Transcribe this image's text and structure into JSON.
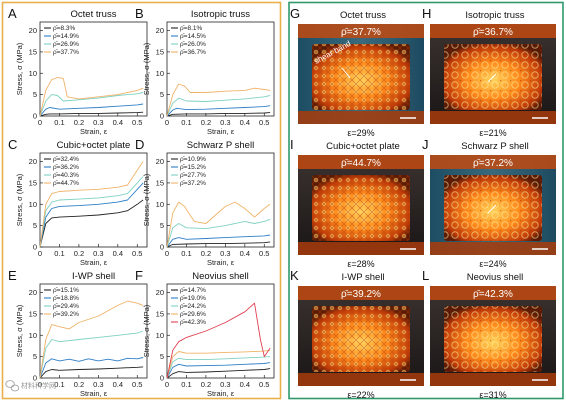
{
  "colors": {
    "left_frame": "#e8b048",
    "right_frame": "#2e9a6c",
    "series": [
      "#222222",
      "#2f7fc7",
      "#7fd1c2",
      "#f0b36a"
    ],
    "neovius_extra": "#e04050"
  },
  "chart_data": [
    {
      "type": "line",
      "panel_label": "A",
      "title": "Octet truss",
      "xlabel": "Strain, ε",
      "ylabel": "Stress, σ (MPa)",
      "xlim": [
        0,
        0.55
      ],
      "ylim": [
        0,
        22
      ],
      "xticks": [
        "0",
        "0.1",
        "0.2",
        "0.3",
        "0.4",
        "0.5"
      ],
      "yticks": [
        "0",
        "5",
        "10",
        "15",
        "20"
      ],
      "series": [
        {
          "name": "ρ̄=8.3%",
          "x": [
            0,
            0.03,
            0.05,
            0.1,
            0.2,
            0.3,
            0.4,
            0.5,
            0.53
          ],
          "y": [
            0,
            0.4,
            0.5,
            0.5,
            0.6,
            0.6,
            0.7,
            0.8,
            0.9
          ]
        },
        {
          "name": "ρ̄=14.9%",
          "x": [
            0,
            0.03,
            0.05,
            0.1,
            0.2,
            0.3,
            0.4,
            0.5,
            0.53
          ],
          "y": [
            0,
            1.6,
            2.0,
            1.6,
            1.8,
            2.0,
            2.3,
            2.6,
            2.8
          ]
        },
        {
          "name": "ρ̄=26.9%",
          "x": [
            0,
            0.03,
            0.06,
            0.09,
            0.12,
            0.2,
            0.3,
            0.4,
            0.5,
            0.53
          ],
          "y": [
            0,
            3.5,
            5.0,
            4.8,
            3.5,
            3.8,
            4.2,
            4.8,
            5.2,
            5.5
          ]
        },
        {
          "name": "ρ̄=37.7%",
          "x": [
            0,
            0.03,
            0.06,
            0.09,
            0.12,
            0.14,
            0.2,
            0.3,
            0.4,
            0.5,
            0.53
          ],
          "y": [
            0,
            6.0,
            8.5,
            9.0,
            8.8,
            4.5,
            4.0,
            4.5,
            5.0,
            6.0,
            6.5
          ]
        }
      ]
    },
    {
      "type": "line",
      "panel_label": "B",
      "title": "Isotropic truss",
      "xlabel": "Strain, ε",
      "ylabel": "Stress, σ (MPa)",
      "xlim": [
        0,
        0.55
      ],
      "ylim": [
        0,
        22
      ],
      "xticks": [
        "0",
        "0.1",
        "0.2",
        "0.3",
        "0.4",
        "0.5"
      ],
      "yticks": [
        "0",
        "5",
        "10",
        "15",
        "20"
      ],
      "series": [
        {
          "name": "ρ̄=8.1%",
          "x": [
            0,
            0.03,
            0.1,
            0.2,
            0.3,
            0.4,
            0.5,
            0.53
          ],
          "y": [
            0,
            0.4,
            0.5,
            0.5,
            0.6,
            0.6,
            0.7,
            0.8
          ]
        },
        {
          "name": "ρ̄=14.5%",
          "x": [
            0,
            0.03,
            0.05,
            0.1,
            0.2,
            0.3,
            0.4,
            0.5,
            0.53
          ],
          "y": [
            0,
            1.4,
            1.8,
            1.5,
            1.6,
            1.8,
            2.0,
            2.2,
            2.4
          ]
        },
        {
          "name": "ρ̄=26.0%",
          "x": [
            0,
            0.03,
            0.06,
            0.1,
            0.2,
            0.3,
            0.4,
            0.5,
            0.53
          ],
          "y": [
            0,
            3.0,
            4.2,
            3.5,
            3.4,
            3.7,
            4.0,
            4.5,
            4.8
          ]
        },
        {
          "name": "ρ̄=36.7%",
          "x": [
            0,
            0.03,
            0.06,
            0.09,
            0.12,
            0.2,
            0.3,
            0.4,
            0.45,
            0.5,
            0.53
          ],
          "y": [
            0,
            5.0,
            7.5,
            7.0,
            5.5,
            5.5,
            5.8,
            6.0,
            6.5,
            6.2,
            6.0
          ]
        }
      ]
    },
    {
      "type": "line",
      "panel_label": "C",
      "title": "Cubic+octet plate",
      "xlabel": "Strain, ε",
      "ylabel": "Stress, σ (MPa)",
      "xlim": [
        0,
        0.55
      ],
      "ylim": [
        0,
        22
      ],
      "xticks": [
        "0",
        "0.1",
        "0.2",
        "0.3",
        "0.4",
        "0.5"
      ],
      "yticks": [
        "0",
        "5",
        "10",
        "15",
        "20"
      ],
      "series": [
        {
          "name": "ρ̄=32.4%",
          "x": [
            0,
            0.03,
            0.06,
            0.1,
            0.2,
            0.3,
            0.4,
            0.45,
            0.5,
            0.53
          ],
          "y": [
            0,
            5.5,
            6.8,
            7.0,
            7.2,
            7.5,
            8.0,
            8.5,
            10.0,
            11.0
          ]
        },
        {
          "name": "ρ̄=36.2%",
          "x": [
            0,
            0.03,
            0.06,
            0.1,
            0.2,
            0.3,
            0.4,
            0.45,
            0.5,
            0.53
          ],
          "y": [
            0,
            7.0,
            9.0,
            9.5,
            9.7,
            10.0,
            10.5,
            11.0,
            13.5,
            15.0
          ]
        },
        {
          "name": "ρ̄=40.3%",
          "x": [
            0,
            0.03,
            0.06,
            0.1,
            0.2,
            0.3,
            0.4,
            0.45,
            0.5,
            0.53
          ],
          "y": [
            0,
            8.5,
            10.5,
            11.0,
            11.2,
            11.5,
            12.0,
            12.5,
            15.0,
            16.5
          ]
        },
        {
          "name": "ρ̄=44.7%",
          "x": [
            0,
            0.03,
            0.06,
            0.1,
            0.2,
            0.3,
            0.4,
            0.45,
            0.5,
            0.53
          ],
          "y": [
            0,
            10.0,
            12.5,
            13.0,
            13.3,
            13.5,
            14.0,
            14.5,
            18.0,
            20.0
          ]
        }
      ]
    },
    {
      "type": "line",
      "panel_label": "D",
      "title": "Schwarz P shell",
      "xlabel": "Strain, ε",
      "ylabel": "Stress, σ (MPa)",
      "xlim": [
        0,
        0.55
      ],
      "ylim": [
        0,
        22
      ],
      "xticks": [
        "0",
        "0.1",
        "0.2",
        "0.3",
        "0.4",
        "0.5"
      ],
      "yticks": [
        "0",
        "5",
        "10",
        "15",
        "20"
      ],
      "series": [
        {
          "name": "ρ̄=10.9%",
          "x": [
            0,
            0.03,
            0.1,
            0.2,
            0.3,
            0.4,
            0.5,
            0.53
          ],
          "y": [
            0,
            0.6,
            0.7,
            0.8,
            0.8,
            0.9,
            1.0,
            1.2
          ]
        },
        {
          "name": "ρ̄=15.2%",
          "x": [
            0,
            0.03,
            0.06,
            0.1,
            0.2,
            0.3,
            0.4,
            0.5,
            0.53
          ],
          "y": [
            0,
            1.8,
            2.2,
            1.8,
            2.0,
            2.2,
            2.4,
            2.6,
            2.8
          ]
        },
        {
          "name": "ρ̄=27.7%",
          "x": [
            0,
            0.03,
            0.06,
            0.1,
            0.2,
            0.3,
            0.4,
            0.45,
            0.5,
            0.53
          ],
          "y": [
            0,
            4.5,
            5.5,
            4.5,
            4.3,
            5.0,
            6.0,
            5.5,
            6.0,
            6.5
          ]
        },
        {
          "name": "ρ̄=37.2%",
          "x": [
            0,
            0.03,
            0.06,
            0.09,
            0.14,
            0.2,
            0.25,
            0.3,
            0.35,
            0.4,
            0.45,
            0.5,
            0.53
          ],
          "y": [
            0,
            8.0,
            10.5,
            9.5,
            6.0,
            5.5,
            7.5,
            9.5,
            10.5,
            9.0,
            7.0,
            9.0,
            10.0
          ]
        }
      ]
    },
    {
      "type": "line",
      "panel_label": "E",
      "title": "I-WP shell",
      "xlabel": "Strain, ε",
      "ylabel": "Stress, σ (MPa)",
      "xlim": [
        0,
        0.55
      ],
      "ylim": [
        0,
        22
      ],
      "xticks": [
        "0",
        "0.1",
        "0.2",
        "0.3",
        "0.4",
        "0.5"
      ],
      "yticks": [
        "0",
        "5",
        "10",
        "15",
        "20"
      ],
      "series": [
        {
          "name": "ρ̄=15.1%",
          "x": [
            0,
            0.03,
            0.06,
            0.1,
            0.2,
            0.3,
            0.4,
            0.5,
            0.53
          ],
          "y": [
            0,
            1.5,
            2.0,
            1.8,
            2.0,
            2.1,
            2.3,
            2.5,
            2.6
          ]
        },
        {
          "name": "ρ̄=18.8%",
          "x": [
            0,
            0.03,
            0.06,
            0.1,
            0.15,
            0.2,
            0.25,
            0.3,
            0.35,
            0.4,
            0.45,
            0.5,
            0.53
          ],
          "y": [
            0,
            3.5,
            4.5,
            4.0,
            4.4,
            3.9,
            4.5,
            4.0,
            4.4,
            4.0,
            4.6,
            4.5,
            4.8
          ]
        },
        {
          "name": "ρ̄=29.4%",
          "x": [
            0,
            0.03,
            0.06,
            0.1,
            0.2,
            0.3,
            0.4,
            0.5,
            0.53
          ],
          "y": [
            0,
            7.0,
            9.0,
            8.5,
            9.0,
            9.5,
            10.0,
            10.5,
            11.0
          ]
        },
        {
          "name": "ρ̄=39.2%",
          "x": [
            0,
            0.03,
            0.06,
            0.1,
            0.15,
            0.2,
            0.3,
            0.4,
            0.45,
            0.5,
            0.53
          ],
          "y": [
            0,
            9.0,
            12.5,
            12.0,
            11.5,
            13.0,
            14.5,
            17.0,
            18.0,
            17.5,
            17.0
          ]
        }
      ]
    },
    {
      "type": "line",
      "panel_label": "F",
      "title": "Neovius shell",
      "xlabel": "Strain, ε",
      "ylabel": "Stress, σ (MPa)",
      "xlim": [
        0,
        0.55
      ],
      "ylim": [
        0,
        22
      ],
      "xticks": [
        "0",
        "0.1",
        "0.2",
        "0.3",
        "0.4",
        "0.5"
      ],
      "yticks": [
        "0",
        "5",
        "10",
        "15",
        "20"
      ],
      "series": [
        {
          "name": "ρ̄=14.7%",
          "x": [
            0,
            0.03,
            0.06,
            0.1,
            0.2,
            0.3,
            0.4,
            0.5,
            0.53
          ],
          "y": [
            0,
            1.0,
            1.5,
            1.3,
            1.4,
            1.6,
            1.8,
            2.0,
            2.2
          ]
        },
        {
          "name": "ρ̄=19.0%",
          "x": [
            0,
            0.03,
            0.06,
            0.1,
            0.2,
            0.3,
            0.4,
            0.5,
            0.53
          ],
          "y": [
            0,
            2.5,
            3.2,
            2.8,
            2.9,
            3.0,
            3.2,
            3.4,
            3.6
          ]
        },
        {
          "name": "ρ̄=24.2%",
          "x": [
            0,
            0.03,
            0.06,
            0.1,
            0.2,
            0.3,
            0.4,
            0.5,
            0.53
          ],
          "y": [
            0,
            3.8,
            4.6,
            4.3,
            4.3,
            4.5,
            4.7,
            4.9,
            5.0
          ]
        },
        {
          "name": "ρ̄=29.6%",
          "x": [
            0,
            0.03,
            0.06,
            0.1,
            0.2,
            0.3,
            0.4,
            0.5,
            0.53
          ],
          "y": [
            0,
            5.0,
            6.2,
            5.8,
            5.8,
            6.0,
            6.1,
            6.3,
            6.5
          ]
        },
        {
          "name": "ρ̄=42.3%",
          "x": [
            0,
            0.03,
            0.06,
            0.1,
            0.2,
            0.3,
            0.4,
            0.45,
            0.48,
            0.5,
            0.53
          ],
          "y": [
            0,
            6.5,
            8.5,
            9.5,
            11.0,
            13.0,
            15.5,
            17.5,
            9.0,
            5.0,
            7.0
          ]
        }
      ]
    }
  ],
  "photos": [
    {
      "label": "G",
      "title": "Octet truss",
      "density": "ρ̄=37.7%",
      "strain": "ε=29%",
      "annotation": "shear band"
    },
    {
      "label": "H",
      "title": "Isotropic truss",
      "density": "ρ̄=36.7%",
      "strain": "ε=21%"
    },
    {
      "label": "I",
      "title": "Cubic+octet plate",
      "density": "ρ̄=44.7%",
      "strain": "ε=28%"
    },
    {
      "label": "J",
      "title": "Schwarz P shell",
      "density": "ρ̄=37.2%",
      "strain": "ε=24%"
    },
    {
      "label": "K",
      "title": "I-WP shell",
      "density": "ρ̄=39.2%",
      "strain": "ε=22%"
    },
    {
      "label": "L",
      "title": "Neovius shell",
      "density": "ρ̄=42.3%",
      "strain": "ε=31%"
    }
  ],
  "watermark": {
    "text": "材料科学网",
    "icon": "wechat-logo-icon"
  }
}
